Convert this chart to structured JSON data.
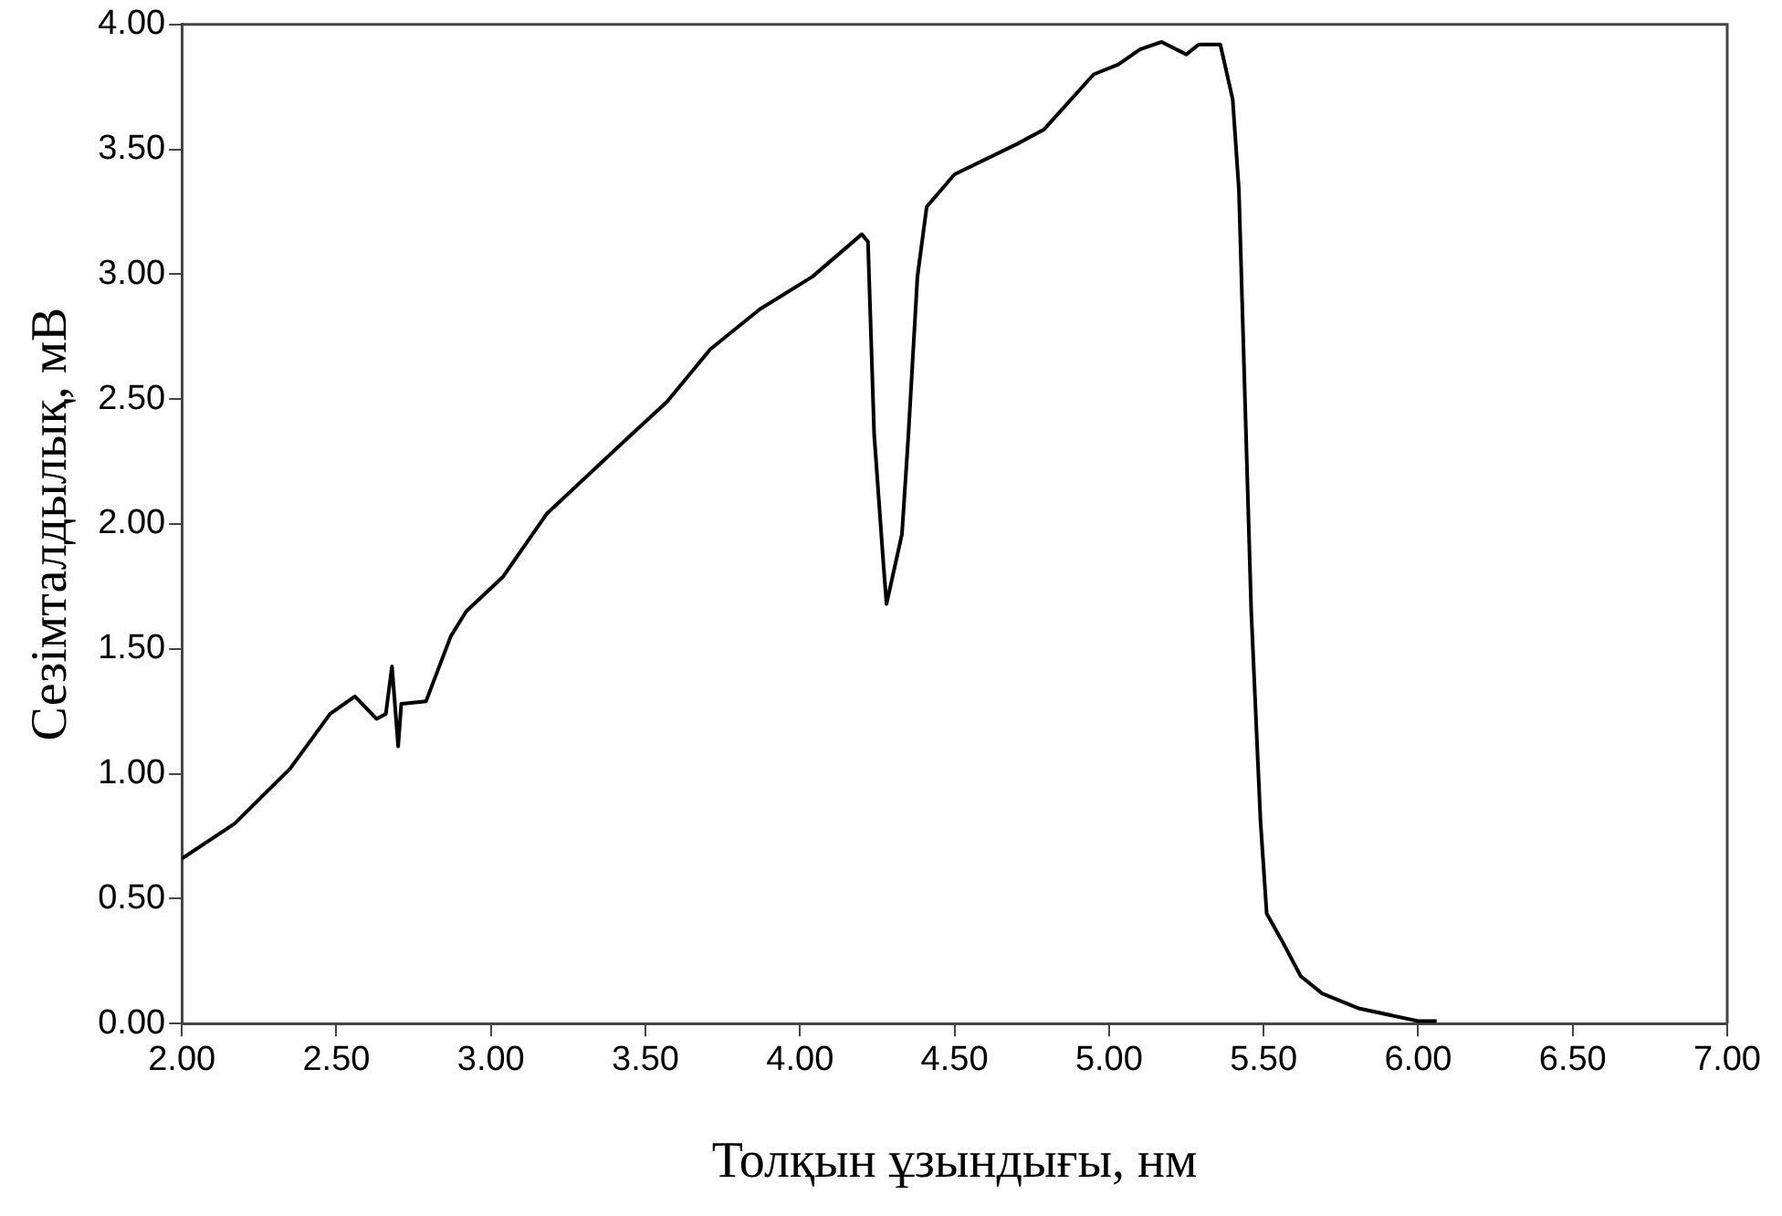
{
  "chart_data": {
    "type": "line",
    "xlabel": "Толқын ұзындығы, нм",
    "ylabel": "Сезімталдылық, мВ",
    "xlim": [
      2,
      7
    ],
    "xticks": [
      {
        "value": 2,
        "label": "2.00"
      },
      {
        "value": 2.5,
        "label": "2.50"
      },
      {
        "value": 3,
        "label": "3.00"
      },
      {
        "value": 3.5,
        "label": "3.50"
      },
      {
        "value": 4,
        "label": "4.00"
      },
      {
        "value": 4.5,
        "label": "4.50"
      },
      {
        "value": 5,
        "label": "5.00"
      },
      {
        "value": 5.5,
        "label": "5.50"
      },
      {
        "value": 6,
        "label": "6.00"
      },
      {
        "value": 6.5,
        "label": "6.50"
      },
      {
        "value": 7,
        "label": "7.00"
      }
    ],
    "ylim": [
      0,
      4
    ],
    "yticks": [
      {
        "value": 0,
        "label": "0.00"
      },
      {
        "value": 0.5,
        "label": "0.50"
      },
      {
        "value": 1,
        "label": "1.00"
      },
      {
        "value": 1.5,
        "label": "1.50"
      },
      {
        "value": 2,
        "label": "2.00"
      },
      {
        "value": 2.5,
        "label": "2.50"
      },
      {
        "value": 3,
        "label": "3.00"
      },
      {
        "value": 3.5,
        "label": "3.50"
      },
      {
        "value": 4,
        "label": "4.00"
      }
    ],
    "grid": false,
    "legend": false,
    "marker": "none",
    "line_style": "solid",
    "series": [
      {
        "color": "#000000",
        "x": [
          2.0,
          2.17,
          2.35,
          2.48,
          2.56,
          2.63,
          2.66,
          2.68,
          2.7,
          2.71,
          2.79,
          2.87,
          2.92,
          3.04,
          3.18,
          3.43,
          3.57,
          3.71,
          3.87,
          4.04,
          4.2,
          4.22,
          4.24,
          4.27,
          4.28,
          4.33,
          4.35,
          4.38,
          4.41,
          4.5,
          4.7,
          4.79,
          4.95,
          5.03,
          5.1,
          5.17,
          5.25,
          5.29,
          5.36,
          5.4,
          5.42,
          5.44,
          5.46,
          5.49,
          5.51,
          5.56,
          5.62,
          5.69,
          5.81,
          6.0,
          6.06
        ],
        "values": [
          0.66,
          0.8,
          1.02,
          1.24,
          1.31,
          1.22,
          1.24,
          1.43,
          1.11,
          1.28,
          1.29,
          1.55,
          1.65,
          1.79,
          2.04,
          2.33,
          2.49,
          2.7,
          2.86,
          2.99,
          3.16,
          3.13,
          2.36,
          1.84,
          1.68,
          1.96,
          2.34,
          2.99,
          3.27,
          3.4,
          3.52,
          3.58,
          3.8,
          3.84,
          3.9,
          3.93,
          3.88,
          3.92,
          3.92,
          3.7,
          3.34,
          2.49,
          1.65,
          0.81,
          0.44,
          0.33,
          0.19,
          0.12,
          0.06,
          0.01,
          0.01
        ]
      }
    ]
  }
}
